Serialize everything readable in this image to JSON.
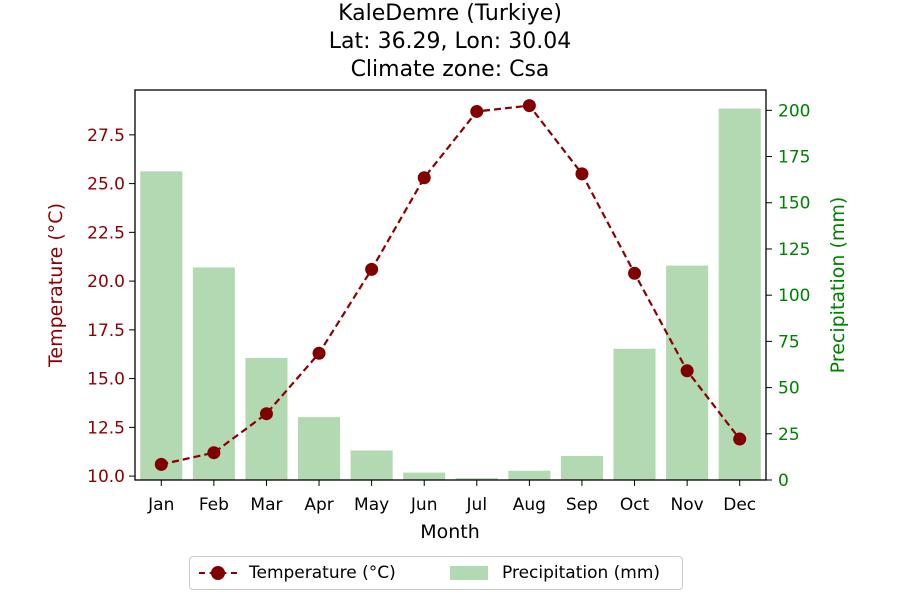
{
  "chart_data": {
    "type": "bar+line",
    "title_lines": [
      "KaleDemre (Turkiye)",
      "Lat: 36.29, Lon: 30.04",
      "Climate zone: Csa"
    ],
    "xlabel": "Month",
    "categories": [
      "Jan",
      "Feb",
      "Mar",
      "Apr",
      "May",
      "Jun",
      "Jul",
      "Aug",
      "Sep",
      "Oct",
      "Nov",
      "Dec"
    ],
    "temperature": {
      "name": "Temperature (°C)",
      "axis_label": "Temperature (°C)",
      "values": [
        10.6,
        11.2,
        13.2,
        16.3,
        20.6,
        25.3,
        28.7,
        29.0,
        25.5,
        20.4,
        15.4,
        11.9
      ],
      "ylim": [
        9.8,
        29.8
      ],
      "ticks": [
        10.0,
        12.5,
        15.0,
        17.5,
        20.0,
        22.5,
        25.0,
        27.5
      ],
      "tick_labels": [
        "10.0",
        "12.5",
        "15.0",
        "17.5",
        "20.0",
        "22.5",
        "25.0",
        "27.5"
      ],
      "color": "#8b0000",
      "marker_color": "#800000",
      "line_style": "dashed"
    },
    "precipitation": {
      "name": "Precipitation (mm)",
      "axis_label": "Precipitation (mm)",
      "values": [
        167,
        115,
        66,
        34,
        16,
        4,
        1,
        5,
        13,
        71,
        116,
        201
      ],
      "ylim": [
        0,
        211
      ],
      "ticks": [
        0,
        25,
        50,
        75,
        100,
        125,
        150,
        175,
        200
      ],
      "tick_labels": [
        "0",
        "25",
        "50",
        "75",
        "100",
        "125",
        "150",
        "175",
        "200"
      ],
      "color": "#008000",
      "bar_color": "#b2d9b2"
    },
    "legend_position": "below center",
    "grid": false
  }
}
